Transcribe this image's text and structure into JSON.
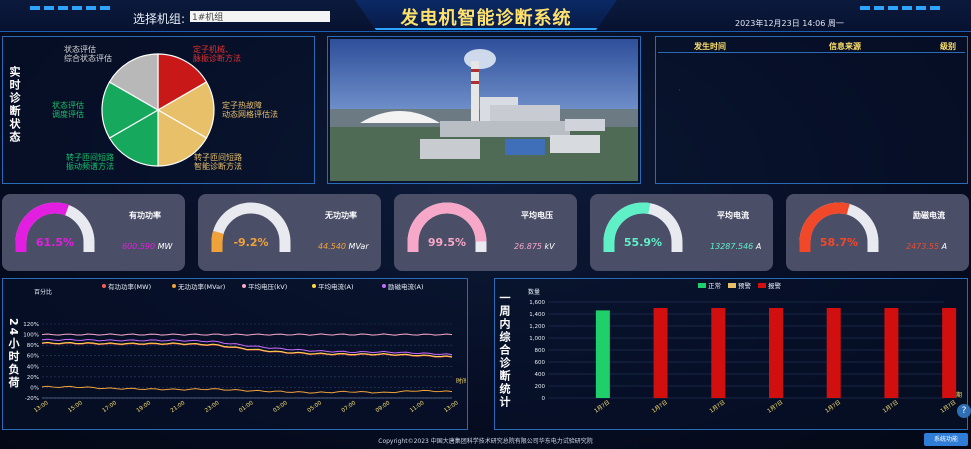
{
  "header": {
    "title": "发电机智能诊断系统",
    "select_label": "选择机组:",
    "select_value": "1#机组",
    "datetime": "2023年12月23日 14:06 周一"
  },
  "status_panel": {
    "title": "实时诊断状态",
    "slices": [
      {
        "label_lines": [
          "定子机械、",
          "脉振诊断方法"
        ],
        "color": "#c91818"
      },
      {
        "label_lines": [
          "定子热故障",
          "动态网格评估法"
        ],
        "color": "#e9c06a"
      },
      {
        "label_lines": [
          "转子匝间短路",
          "智能诊断方法"
        ],
        "color": "#e9c06a"
      },
      {
        "label_lines": [
          "转子匝间短路",
          "振动频谱方法"
        ],
        "color": "#16a85c"
      },
      {
        "label_lines": [
          "状态评估",
          "调度评估"
        ],
        "color": "#16a85c"
      },
      {
        "label_lines": [
          "状态评估",
          "综合状态评估"
        ],
        "color": "#b8b8b8"
      }
    ]
  },
  "alarm_table": {
    "headers": [
      "发生时间",
      "信息来源",
      "级别"
    ]
  },
  "gauges": [
    {
      "title": "有功功率",
      "pct": "61.5%",
      "pct_value": 61.5,
      "value": "600.590",
      "unit": "MW",
      "color": "#e21ee0",
      "track": "#e9e9f0"
    },
    {
      "title": "无功功率",
      "pct": "-9.2%",
      "pct_value": 9.2,
      "value": "44.540",
      "unit": "MVar",
      "color": "#f0a23a",
      "track": "#e9e9f0"
    },
    {
      "title": "平均电压",
      "pct": "99.5%",
      "pct_value": 99.5,
      "value": "26.875",
      "unit": "kV",
      "color": "#f7a7c8",
      "track": "#e9e9f0"
    },
    {
      "title": "平均电流",
      "pct": "55.9%",
      "pct_value": 55.9,
      "value": "13287.546",
      "unit": "A",
      "color": "#5ff0c8",
      "track": "#e9e9f0"
    },
    {
      "title": "励磁电流",
      "pct": "58.7%",
      "pct_value": 58.7,
      "value": "2473.55",
      "unit": "A",
      "color": "#f2482a",
      "track": "#e9e9f0"
    }
  ],
  "load_chart": {
    "title": "24小时负荷",
    "legend": [
      "有功功率(MW)",
      "无功功率(MVar)",
      "平均电压(kV)",
      "平均电流(A)",
      "励磁电流(A)"
    ],
    "ylabel": "百分比",
    "xlabel": "时间",
    "yticks": [
      "120%",
      "100%",
      "80%",
      "60%",
      "40%",
      "20%",
      "0%",
      "-20%"
    ],
    "xticks": [
      "13:00",
      "15:00",
      "17:00",
      "19:00",
      "21:00",
      "23:00",
      "01:00",
      "03:00",
      "05:00",
      "07:00",
      "09:00",
      "11:00",
      "13:00"
    ]
  },
  "week_chart": {
    "title": "一周内综合诊断统计",
    "legend": [
      "正常",
      "预警",
      "报警"
    ],
    "ylabel": "数量",
    "xlabel": "日期",
    "yticks": [
      "1,600",
      "1,400",
      "1,200",
      "1,000",
      "800",
      "600",
      "400",
      "200",
      "0"
    ]
  },
  "chart_data": [
    {
      "type": "line",
      "title": "",
      "xlabel": "时间",
      "ylabel": "百分比",
      "ylim": [
        -20,
        120
      ],
      "x": [
        "13:00",
        "15:00",
        "17:00",
        "19:00",
        "21:00",
        "23:00",
        "01:00",
        "03:00",
        "05:00",
        "07:00",
        "09:00",
        "11:00",
        "13:00"
      ],
      "series": [
        {
          "name": "有功功率(MW)",
          "color": "#ff5a5a",
          "values": [
            83,
            83,
            82,
            82,
            82,
            80,
            72,
            66,
            63,
            62,
            62,
            60,
            57
          ]
        },
        {
          "name": "无功功率(MVar)",
          "color": "#f0a23a",
          "values": [
            1,
            1,
            -2,
            -3,
            -4,
            -3,
            -6,
            -8,
            -10,
            -8,
            -10,
            -6,
            -8
          ]
        },
        {
          "name": "平均电压(kV)",
          "color": "#f7a7c8",
          "values": [
            100,
            100,
            100,
            100,
            100,
            100,
            100,
            100,
            100,
            100,
            100,
            100,
            100
          ]
        },
        {
          "name": "平均电流(A)",
          "color": "#ffd84a",
          "values": [
            84,
            84,
            83,
            83,
            83,
            81,
            73,
            67,
            64,
            63,
            63,
            61,
            58
          ]
        },
        {
          "name": "励磁电流(A)",
          "color": "#c96bff",
          "values": [
            90,
            90,
            89,
            89,
            89,
            87,
            79,
            73,
            69,
            67,
            67,
            65,
            62
          ]
        }
      ]
    },
    {
      "type": "bar",
      "title": "",
      "xlabel": "日期",
      "ylabel": "数量",
      "ylim": [
        0,
        1600
      ],
      "categories": [
        "1月?日",
        "1月?日",
        "1月?日",
        "1月?日",
        "1月?日",
        "1月?日",
        "1月?日"
      ],
      "series": [
        {
          "name": "正常",
          "color": "#1fd06a",
          "values": [
            1460,
            0,
            0,
            0,
            0,
            0,
            0
          ]
        },
        {
          "name": "预警",
          "color": "#e9c06a",
          "values": [
            0,
            0,
            0,
            0,
            0,
            0,
            0
          ]
        },
        {
          "name": "报警",
          "color": "#d10f0f",
          "values": [
            0,
            1500,
            1500,
            1500,
            1500,
            1500,
            1500
          ]
        }
      ]
    }
  ],
  "footer": {
    "copyright": "Copyright©2023 中国大唐集团科学技术研究总院有限公司华东电力试验研究院",
    "corner_button": "系统功能"
  }
}
